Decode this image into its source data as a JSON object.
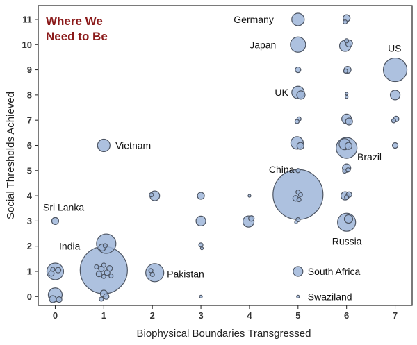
{
  "chart_data": {
    "type": "scatter",
    "title": "Where We Need to Be",
    "title_lines": [
      "Where We",
      "Need to Be"
    ],
    "title_color": "#8B1A1A",
    "xlabel": "Biophysical Boundaries Transgressed",
    "ylabel": "Social Thresholds Achieved",
    "xlim": [
      -0.35,
      7.35
    ],
    "ylim": [
      -0.35,
      11.55
    ],
    "x_ticks": [
      0,
      1,
      2,
      3,
      4,
      5,
      6,
      7
    ],
    "y_ticks": [
      0,
      1,
      2,
      3,
      4,
      5,
      6,
      7,
      8,
      9,
      10,
      11
    ],
    "grid": false,
    "legend": "none",
    "bubble_fill": "#9fb6d9",
    "bubble_stroke": "#4d5563",
    "points": [
      {
        "x": 0.0,
        "y": 0.07,
        "size": 10
      },
      {
        "x": -0.05,
        "y": -0.1,
        "size": 5
      },
      {
        "x": 0.08,
        "y": -0.12,
        "size": 4
      },
      {
        "x": 0.0,
        "y": 1.0,
        "size": 12
      },
      {
        "x": -0.08,
        "y": 0.92,
        "size": 4
      },
      {
        "x": 0.06,
        "y": 1.05,
        "size": 4
      },
      {
        "x": -0.05,
        "y": 1.08,
        "size": 3
      },
      {
        "x": 0.0,
        "y": 3.0,
        "size": 5
      },
      {
        "x": 1.0,
        "y": 1.05,
        "size": 34,
        "label": "India"
      },
      {
        "x": 0.95,
        "y": 1.1,
        "size": 4
      },
      {
        "x": 1.07,
        "y": 0.95,
        "size": 4
      },
      {
        "x": 0.9,
        "y": 0.9,
        "size": 4
      },
      {
        "x": 1.12,
        "y": 1.12,
        "size": 4
      },
      {
        "x": 1.0,
        "y": 1.25,
        "size": 3
      },
      {
        "x": 0.85,
        "y": 1.18,
        "size": 3
      },
      {
        "x": 1.15,
        "y": 0.82,
        "size": 3
      },
      {
        "x": 1.0,
        "y": 0.8,
        "size": 3
      },
      {
        "x": 1.05,
        "y": 2.1,
        "size": 14
      },
      {
        "x": 0.97,
        "y": 1.95,
        "size": 5
      },
      {
        "x": 1.03,
        "y": 2.02,
        "size": 3
      },
      {
        "x": 1.0,
        "y": 0.12,
        "size": 5
      },
      {
        "x": 1.05,
        "y": 0.0,
        "size": 4
      },
      {
        "x": 0.95,
        "y": -0.1,
        "size": 3
      },
      {
        "x": 1.0,
        "y": 6.0,
        "size": 9,
        "label": "Vietnam"
      },
      {
        "x": 2.05,
        "y": 0.95,
        "size": 13,
        "label": "Pakistan"
      },
      {
        "x": 1.97,
        "y": 1.03,
        "size": 3
      },
      {
        "x": 2.0,
        "y": 0.88,
        "size": 3
      },
      {
        "x": 2.05,
        "y": 4.0,
        "size": 7
      },
      {
        "x": 1.98,
        "y": 4.04,
        "size": 3
      },
      {
        "x": 3.0,
        "y": 4.0,
        "size": 5
      },
      {
        "x": 3.0,
        "y": 3.0,
        "size": 7
      },
      {
        "x": 3.0,
        "y": 2.05,
        "size": 3
      },
      {
        "x": 3.02,
        "y": 1.92,
        "size": 2
      },
      {
        "x": 3.0,
        "y": 0.0,
        "size": 2
      },
      {
        "x": 3.98,
        "y": 2.98,
        "size": 8
      },
      {
        "x": 4.04,
        "y": 3.1,
        "size": 4
      },
      {
        "x": 4.0,
        "y": 4.0,
        "size": 2
      },
      {
        "x": 5.0,
        "y": 4.05,
        "size": 36,
        "label": "China"
      },
      {
        "x": 4.95,
        "y": 3.9,
        "size": 4
      },
      {
        "x": 5.05,
        "y": 4.05,
        "size": 3
      },
      {
        "x": 5.02,
        "y": 3.85,
        "size": 3
      },
      {
        "x": 5.0,
        "y": 4.15,
        "size": 3
      },
      {
        "x": 5.0,
        "y": 3.05,
        "size": 3
      },
      {
        "x": 4.96,
        "y": 2.95,
        "size": 2
      },
      {
        "x": 5.0,
        "y": 11.0,
        "size": 9,
        "label": "Germany"
      },
      {
        "x": 5.0,
        "y": 10.0,
        "size": 11,
        "label": "Japan"
      },
      {
        "x": 5.0,
        "y": 9.0,
        "size": 4
      },
      {
        "x": 5.0,
        "y": 8.1,
        "size": 9,
        "label": "UK"
      },
      {
        "x": 5.06,
        "y": 8.0,
        "size": 6
      },
      {
        "x": 5.02,
        "y": 7.05,
        "size": 3
      },
      {
        "x": 4.98,
        "y": 6.95,
        "size": 3
      },
      {
        "x": 4.98,
        "y": 6.1,
        "size": 9
      },
      {
        "x": 5.05,
        "y": 5.98,
        "size": 5
      },
      {
        "x": 5.0,
        "y": 5.0,
        "size": 3
      },
      {
        "x": 5.0,
        "y": 1.0,
        "size": 7,
        "label": "South Africa"
      },
      {
        "x": 5.0,
        "y": 0.0,
        "size": 2,
        "label": "Swaziland"
      },
      {
        "x": 6.0,
        "y": 11.05,
        "size": 5
      },
      {
        "x": 5.97,
        "y": 10.9,
        "size": 3
      },
      {
        "x": 5.97,
        "y": 9.95,
        "size": 8
      },
      {
        "x": 6.05,
        "y": 10.05,
        "size": 5
      },
      {
        "x": 6.0,
        "y": 10.15,
        "size": 3
      },
      {
        "x": 6.02,
        "y": 9.0,
        "size": 5
      },
      {
        "x": 5.98,
        "y": 8.95,
        "size": 3
      },
      {
        "x": 6.0,
        "y": 8.05,
        "size": 2
      },
      {
        "x": 6.0,
        "y": 7.92,
        "size": 2
      },
      {
        "x": 6.0,
        "y": 7.05,
        "size": 7
      },
      {
        "x": 6.05,
        "y": 6.95,
        "size": 5
      },
      {
        "x": 6.0,
        "y": 5.9,
        "size": 15,
        "label": "Brazil"
      },
      {
        "x": 5.96,
        "y": 6.05,
        "size": 8
      },
      {
        "x": 6.04,
        "y": 5.98,
        "size": 5
      },
      {
        "x": 6.0,
        "y": 5.1,
        "size": 6
      },
      {
        "x": 5.96,
        "y": 4.98,
        "size": 3
      },
      {
        "x": 6.03,
        "y": 5.03,
        "size": 3
      },
      {
        "x": 5.97,
        "y": 4.0,
        "size": 6
      },
      {
        "x": 6.05,
        "y": 4.05,
        "size": 4
      },
      {
        "x": 6.0,
        "y": 3.95,
        "size": 3
      },
      {
        "x": 6.0,
        "y": 2.95,
        "size": 13,
        "label": "Russia"
      },
      {
        "x": 6.04,
        "y": 3.08,
        "size": 6
      },
      {
        "x": 7.0,
        "y": 9.0,
        "size": 17,
        "label": "US"
      },
      {
        "x": 7.0,
        "y": 8.0,
        "size": 7
      },
      {
        "x": 7.02,
        "y": 7.05,
        "size": 4
      },
      {
        "x": 6.97,
        "y": 6.98,
        "size": 3
      },
      {
        "x": 7.0,
        "y": 6.0,
        "size": 4
      }
    ],
    "annotations": [
      {
        "text": "Germany",
        "x": 4.5,
        "y": 11.0,
        "anchor": "end"
      },
      {
        "text": "Japan",
        "x": 4.55,
        "y": 10.0,
        "anchor": "end"
      },
      {
        "text": "US",
        "x": 6.85,
        "y": 9.85,
        "anchor": "start"
      },
      {
        "text": "UK",
        "x": 4.8,
        "y": 8.1,
        "anchor": "end"
      },
      {
        "text": "Vietnam",
        "x": 1.24,
        "y": 6.0,
        "anchor": "start"
      },
      {
        "text": "Brazil",
        "x": 6.22,
        "y": 5.55,
        "anchor": "start"
      },
      {
        "text": "China",
        "x": 4.4,
        "y": 5.05,
        "anchor": "start"
      },
      {
        "text": "Sri Lanka",
        "x": -0.25,
        "y": 3.55,
        "anchor": "start"
      },
      {
        "text": "India",
        "x": 0.08,
        "y": 2.0,
        "anchor": "start"
      },
      {
        "text": "Russia",
        "x": 5.7,
        "y": 2.2,
        "anchor": "start"
      },
      {
        "text": "Pakistan",
        "x": 2.3,
        "y": 0.9,
        "anchor": "start"
      },
      {
        "text": "South Africa",
        "x": 5.2,
        "y": 1.0,
        "anchor": "start"
      },
      {
        "text": "Swaziland",
        "x": 5.2,
        "y": 0.0,
        "anchor": "start"
      }
    ]
  }
}
